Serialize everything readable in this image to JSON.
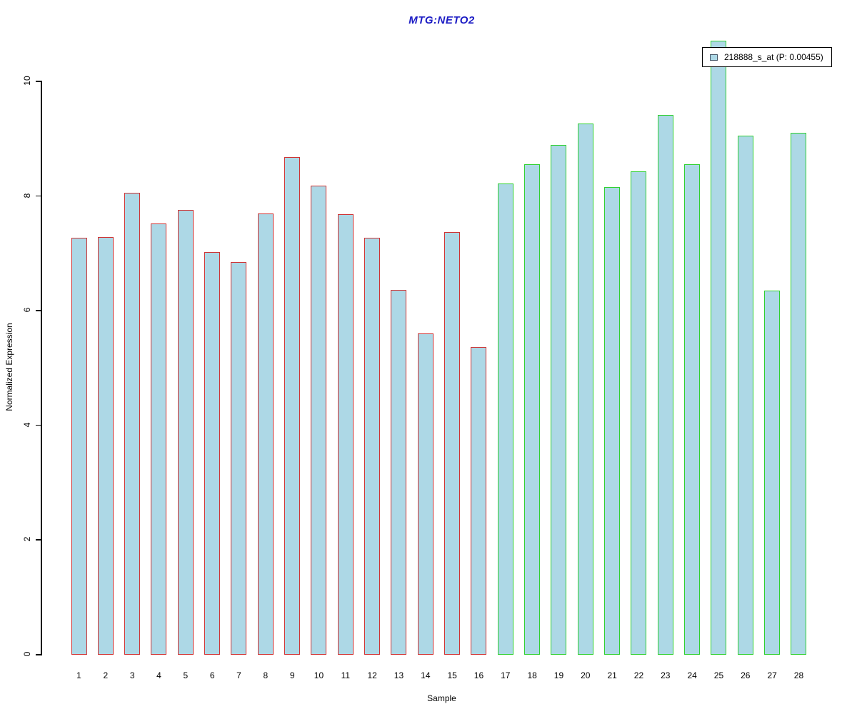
{
  "chart_data": {
    "type": "bar",
    "title": "MTG:NETO2",
    "xlabel": "Sample",
    "ylabel": "Normalized Expression",
    "ylim": [
      0,
      10
    ],
    "yticks": [
      0,
      2,
      4,
      6,
      8,
      10
    ],
    "grid": false,
    "legend_position": "top-right",
    "categories": [
      "1",
      "2",
      "3",
      "4",
      "5",
      "6",
      "7",
      "8",
      "9",
      "10",
      "11",
      "12",
      "13",
      "14",
      "15",
      "16",
      "17",
      "18",
      "19",
      "20",
      "21",
      "22",
      "23",
      "24",
      "25",
      "26",
      "27",
      "28"
    ],
    "series": [
      {
        "name": "218888_s_at (P: 0.00455)",
        "values": [
          7.26,
          7.27,
          8.04,
          7.51,
          7.74,
          7.01,
          6.84,
          7.68,
          8.67,
          8.17,
          7.67,
          7.26,
          6.35,
          5.59,
          7.36,
          5.35,
          8.21,
          8.54,
          8.88,
          9.25,
          8.14,
          8.42,
          9.4,
          8.54,
          10.7,
          9.04,
          6.34,
          9.09
        ]
      }
    ],
    "group_sizes": [
      16,
      12
    ],
    "colors": {
      "bar_fill": "#add8e6",
      "group1_border": "#d03232",
      "group2_border": "#30d030",
      "title_color": "#1b1bc4",
      "axis_color": "#000000",
      "legend_swatch_fill": "#add8e6",
      "legend_swatch_border": "#445566"
    }
  }
}
